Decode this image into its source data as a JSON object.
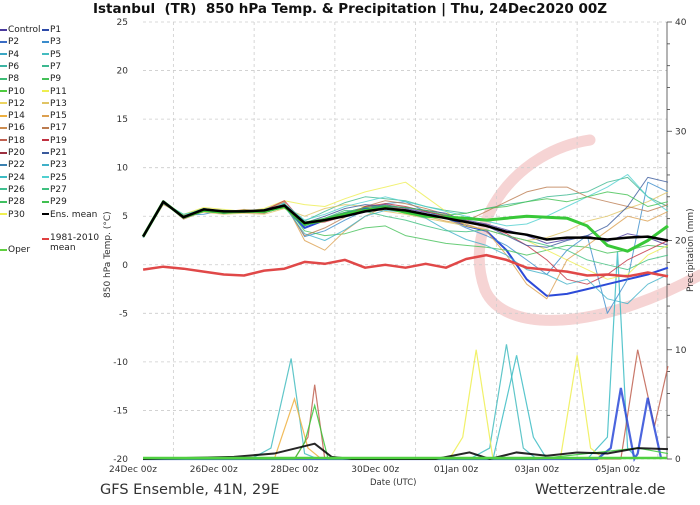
{
  "title": "Istanbul  (TR)  850 hPa Temp. & Precipitation | Thu, 24Dec2020 00Z",
  "footer_left": "GFS Ensemble, 41N, 29E",
  "footer_right": "Wetterzentrale.de",
  "chart_data": {
    "type": "line",
    "title": "Istanbul  (TR)  850 hPa Temp. & Precipitation | Thu, 24Dec2020 00Z",
    "xlabel": "Date (UTC)",
    "ylabel": "850 hPa Temp. (°C)",
    "y2label": "Precipitation (mm)",
    "x_tick_labels": [
      "24Dec 00z",
      "26Dec 00z",
      "28Dec 00z",
      "30Dec 00z",
      "01Jan 00z",
      "03Jan 00z",
      "05Jan 00z"
    ],
    "ylim": [
      -20,
      25
    ],
    "y_ticks": [
      25,
      20,
      15,
      10,
      5,
      0,
      -5,
      -10,
      -15,
      -20
    ],
    "y2lim": [
      0,
      40
    ],
    "y2_ticks": [
      40,
      30,
      20,
      10,
      0
    ],
    "grid": true,
    "legend_position": "left",
    "hours_from_24Dec_00z": [
      6,
      18,
      30,
      42,
      54,
      66,
      78,
      90,
      102,
      114,
      126,
      138,
      150,
      162,
      174,
      186,
      198,
      210,
      222,
      234,
      246,
      258,
      270,
      282,
      294,
      306,
      318
    ],
    "legend": [
      {
        "name": "Control",
        "color": "#4a3a9c"
      },
      {
        "name": "P1",
        "color": "#2c4aa8"
      },
      {
        "name": "P2",
        "color": "#3a6cc4"
      },
      {
        "name": "P3",
        "color": "#3a8ccc"
      },
      {
        "name": "P4",
        "color": "#3aa6c4"
      },
      {
        "name": "P5",
        "color": "#44bcc0"
      },
      {
        "name": "P6",
        "color": "#3cb4a4"
      },
      {
        "name": "P7",
        "color": "#3cb890"
      },
      {
        "name": "P8",
        "color": "#3cbc74"
      },
      {
        "name": "P9",
        "color": "#44c058"
      },
      {
        "name": "P10",
        "color": "#50cc40"
      },
      {
        "name": "P11",
        "color": "#eeee50"
      },
      {
        "name": "P12",
        "color": "#ecd460"
      },
      {
        "name": "P13",
        "color": "#e0c464"
      },
      {
        "name": "P14",
        "color": "#eeb040"
      },
      {
        "name": "P15",
        "color": "#dca050"
      },
      {
        "name": "P16",
        "color": "#cc8c50"
      },
      {
        "name": "P17",
        "color": "#bc7c50"
      },
      {
        "name": "P18",
        "color": "#c06050"
      },
      {
        "name": "P19",
        "color": "#c03040"
      },
      {
        "name": "P20",
        "color": "#9c3040"
      },
      {
        "name": "P21",
        "color": "#3a5a9c"
      },
      {
        "name": "P22",
        "color": "#3a80b0"
      },
      {
        "name": "P23",
        "color": "#40b0c8"
      },
      {
        "name": "P24",
        "color": "#3cbcc4"
      },
      {
        "name": "P25",
        "color": "#50d0d0"
      },
      {
        "name": "P26",
        "color": "#40c090"
      },
      {
        "name": "P27",
        "color": "#40c080"
      },
      {
        "name": "P28",
        "color": "#40c060"
      },
      {
        "name": "P29",
        "color": "#40c050"
      },
      {
        "name": "P30",
        "color": "#f0f050"
      },
      {
        "name": "Ens. mean",
        "color": "#000000"
      },
      {
        "name": "1981-2010 mean",
        "color": "#e04040"
      },
      {
        "name": "Oper",
        "color": "#60d040"
      }
    ],
    "temperature_series": [
      {
        "name": "Control",
        "color": "#4a3a9c",
        "width": 1,
        "values": [
          2.9,
          6.4,
          5.0,
          5.6,
          5.4,
          5.6,
          5.5,
          6.2,
          4.0,
          4.8,
          5.4,
          5.9,
          6.2,
          5.8,
          5.4,
          5.1,
          4.6,
          4.2,
          3.6,
          3.0,
          2.2,
          2.6,
          3.0,
          2.4,
          3.2,
          2.8,
          2.0
        ]
      },
      {
        "name": "P1",
        "color": "#2c4ad8",
        "width": 2,
        "values": [
          2.9,
          6.5,
          4.9,
          5.7,
          5.3,
          5.6,
          5.4,
          6.0,
          3.8,
          4.6,
          5.3,
          5.8,
          6.0,
          5.6,
          5.2,
          4.9,
          4.0,
          3.5,
          1.5,
          -1.5,
          -3.2,
          -3.0,
          -2.5,
          -2.0,
          -1.5,
          -1.0,
          -0.3
        ]
      },
      {
        "name": "P3",
        "color": "#3a8ccc",
        "width": 1,
        "values": [
          2.8,
          6.3,
          5.1,
          5.2,
          5.6,
          5.4,
          5.7,
          6.4,
          2.9,
          3.5,
          4.6,
          5.6,
          6.3,
          6.5,
          5.5,
          4.8,
          3.8,
          3.0,
          2.0,
          0.5,
          -1.0,
          1.5,
          3.0,
          -5.0,
          -1.5,
          8.5,
          7.5
        ]
      },
      {
        "name": "P7",
        "color": "#3cb890",
        "width": 1,
        "values": [
          3.0,
          6.4,
          5.2,
          5.8,
          5.5,
          5.6,
          5.3,
          6.3,
          4.5,
          5.5,
          6.4,
          7.0,
          6.8,
          6.6,
          6.0,
          5.6,
          5.3,
          5.8,
          6.2,
          6.5,
          7.0,
          7.2,
          7.5,
          8.5,
          9.0,
          7.0,
          6.0
        ]
      },
      {
        "name": "P9",
        "color": "#44c058",
        "width": 1,
        "values": [
          2.9,
          6.5,
          4.8,
          5.6,
          5.5,
          5.5,
          5.6,
          6.2,
          3.5,
          3.0,
          3.2,
          3.8,
          4.0,
          3.0,
          2.6,
          2.2,
          2.0,
          1.8,
          1.5,
          1.0,
          1.5,
          2.0,
          1.8,
          1.2,
          1.5,
          2.0,
          1.8
        ]
      },
      {
        "name": "P11",
        "color": "#eeee50",
        "width": 1,
        "values": [
          3.0,
          6.3,
          5.2,
          5.9,
          5.7,
          5.5,
          5.8,
          6.6,
          6.2,
          6.0,
          6.8,
          7.5,
          8.0,
          8.5,
          7.0,
          5.5,
          4.0,
          3.6,
          3.0,
          2.5,
          1.5,
          0.5,
          -0.5,
          -1.5,
          -1.0,
          1.0,
          2.0
        ]
      },
      {
        "name": "P13",
        "color": "#e0c464",
        "width": 1,
        "values": [
          2.8,
          6.4,
          5.0,
          5.4,
          5.2,
          5.3,
          5.2,
          5.8,
          5.0,
          5.8,
          6.2,
          6.0,
          5.5,
          5.2,
          4.8,
          4.4,
          4.0,
          3.6,
          3.0,
          2.5,
          2.8,
          3.5,
          4.5,
          5.0,
          5.8,
          6.5,
          7.5
        ]
      },
      {
        "name": "P15",
        "color": "#dca050",
        "width": 1,
        "values": [
          2.9,
          6.2,
          5.1,
          5.6,
          5.4,
          5.7,
          5.5,
          6.5,
          2.5,
          1.5,
          3.5,
          5.0,
          6.0,
          5.7,
          5.0,
          4.5,
          4.2,
          3.5,
          1.0,
          -2.0,
          -3.5,
          0.5,
          2.0,
          3.5,
          5.0,
          4.5,
          5.5
        ]
      },
      {
        "name": "P17",
        "color": "#bc7c50",
        "width": 1,
        "values": [
          3.0,
          6.5,
          4.7,
          5.5,
          5.6,
          5.4,
          5.3,
          6.2,
          3.0,
          3.8,
          4.9,
          6.0,
          6.6,
          6.3,
          5.8,
          5.2,
          4.5,
          5.5,
          6.5,
          7.5,
          8.0,
          8.0,
          7.0,
          6.5,
          6.0,
          5.5,
          6.2
        ]
      },
      {
        "name": "P19",
        "color": "#c03040",
        "width": 1,
        "values": [
          2.9,
          6.4,
          5.0,
          5.7,
          5.4,
          5.6,
          5.6,
          6.6,
          4.2,
          4.4,
          5.0,
          6.0,
          6.3,
          6.0,
          5.5,
          5.0,
          4.5,
          4.0,
          3.2,
          2.0,
          0.5,
          -1.5,
          -2.0,
          -1.0,
          0.5,
          1.5,
          2.5
        ]
      },
      {
        "name": "P21",
        "color": "#3a5a9c",
        "width": 1,
        "values": [
          2.9,
          6.3,
          5.0,
          5.5,
          5.3,
          5.6,
          5.5,
          6.1,
          4.3,
          5.0,
          5.8,
          6.2,
          6.0,
          5.9,
          5.6,
          5.3,
          4.5,
          4.0,
          3.0,
          2.0,
          1.8,
          2.5,
          3.0,
          4.0,
          6.0,
          9.0,
          8.5
        ]
      },
      {
        "name": "P23",
        "color": "#40b0c8",
        "width": 1,
        "values": [
          2.8,
          6.5,
          5.0,
          5.8,
          5.5,
          5.4,
          5.6,
          6.0,
          3.2,
          2.5,
          3.6,
          5.0,
          5.6,
          5.4,
          4.8,
          3.6,
          2.6,
          2.0,
          1.0,
          -0.5,
          -1.0,
          -2.0,
          -1.5,
          -3.5,
          -4.0,
          -2.0,
          -1.0
        ]
      },
      {
        "name": "P25",
        "color": "#50d0d0",
        "width": 1,
        "values": [
          2.9,
          6.4,
          5.2,
          5.6,
          5.6,
          5.5,
          5.5,
          6.3,
          4.6,
          5.2,
          6.0,
          6.5,
          7.0,
          6.5,
          6.0,
          5.5,
          5.0,
          4.5,
          4.0,
          4.2,
          5.0,
          6.0,
          7.0,
          8.0,
          9.3,
          7.0,
          5.5
        ]
      },
      {
        "name": "P27",
        "color": "#40c080",
        "width": 1,
        "values": [
          3.0,
          6.4,
          4.9,
          5.6,
          5.5,
          5.5,
          5.4,
          6.1,
          4.0,
          4.8,
          5.6,
          5.5,
          5.0,
          4.6,
          4.0,
          3.5,
          3.4,
          3.6,
          3.0,
          2.5,
          2.0,
          1.5,
          0.5,
          0.0,
          -0.5,
          0.5,
          1.0
        ]
      },
      {
        "name": "P29",
        "color": "#40c050",
        "width": 1,
        "values": [
          2.9,
          6.5,
          5.0,
          5.6,
          5.4,
          5.6,
          5.5,
          6.2,
          4.4,
          4.8,
          5.4,
          5.9,
          6.1,
          5.9,
          5.6,
          5.1,
          5.3,
          5.8,
          6.0,
          6.5,
          6.8,
          6.5,
          7.0,
          7.5,
          7.2,
          6.0,
          6.5
        ]
      },
      {
        "name": "Oper",
        "color": "#38c838",
        "width": 3,
        "values": [
          2.9,
          6.5,
          4.9,
          5.6,
          5.4,
          5.5,
          5.5,
          6.0,
          4.2,
          4.6,
          5.2,
          5.6,
          5.9,
          5.4,
          5.0,
          4.9,
          4.8,
          4.6,
          4.8,
          5.0,
          4.9,
          4.8,
          4.0,
          2.0,
          1.4,
          2.5,
          4.0
        ]
      },
      {
        "name": "Ens. mean",
        "color": "#000000",
        "width": 2.5,
        "values": [
          2.9,
          6.5,
          4.9,
          5.7,
          5.5,
          5.5,
          5.6,
          6.1,
          4.3,
          4.6,
          5.0,
          5.5,
          5.8,
          5.6,
          5.2,
          4.8,
          4.4,
          4.0,
          3.4,
          3.1,
          2.6,
          2.8,
          2.8,
          2.6,
          2.8,
          2.9,
          2.5
        ]
      },
      {
        "name": "1981-2010 mean",
        "color": "#e04848",
        "width": 2.5,
        "values": [
          -0.5,
          -0.2,
          -0.4,
          -0.7,
          -1.0,
          -1.1,
          -0.6,
          -0.4,
          0.3,
          0.1,
          0.5,
          -0.3,
          0.0,
          -0.3,
          0.1,
          -0.3,
          0.6,
          1.0,
          0.5,
          -0.3,
          -0.5,
          -0.7,
          -1.1,
          -1.0,
          -1.2,
          -0.8,
          -1.2
        ]
      }
    ],
    "precipitation_series": [
      {
        "name": "P5",
        "color": "#44bcc0",
        "points": [
          [
            70,
            0
          ],
          [
            82,
            1
          ],
          [
            94,
            9.2
          ],
          [
            102,
            0.5
          ],
          [
            110,
            0
          ],
          [
            200,
            0
          ],
          [
            212,
            1
          ],
          [
            222,
            10.5
          ],
          [
            232,
            1
          ],
          [
            240,
            0
          ]
        ]
      },
      {
        "name": "P24",
        "color": "#3cbcc4",
        "points": [
          [
            214,
            0
          ],
          [
            228,
            9.5
          ],
          [
            238,
            2
          ],
          [
            246,
            0
          ],
          [
            270,
            0
          ],
          [
            282,
            2
          ],
          [
            288,
            19
          ],
          [
            294,
            1
          ],
          [
            300,
            0
          ]
        ]
      },
      {
        "name": "P18",
        "color": "#c06050",
        "points": [
          [
            96,
            0
          ],
          [
            104,
            2
          ],
          [
            108,
            6.8
          ],
          [
            114,
            0
          ],
          [
            290,
            0
          ],
          [
            300,
            10
          ],
          [
            310,
            3
          ],
          [
            318,
            8.5
          ]
        ]
      },
      {
        "name": "P11",
        "color": "#eeee50",
        "points": [
          [
            188,
            0
          ],
          [
            196,
            2
          ],
          [
            204,
            10
          ],
          [
            214,
            0
          ],
          [
            254,
            0
          ],
          [
            264,
            9.5
          ],
          [
            272,
            1
          ],
          [
            280,
            0
          ]
        ]
      },
      {
        "name": "P14",
        "color": "#eeb040",
        "points": [
          [
            84,
            0
          ],
          [
            96,
            5.5
          ],
          [
            104,
            1
          ],
          [
            112,
            0
          ]
        ]
      },
      {
        "name": "P1",
        "color": "#2c4ad8",
        "points": [
          [
            276,
            0
          ],
          [
            284,
            1
          ],
          [
            290,
            6.5
          ],
          [
            298,
            0
          ],
          [
            300,
            0.5
          ],
          [
            306,
            5.6
          ],
          [
            314,
            0
          ]
        ]
      },
      {
        "name": "Oper",
        "color": "#38c838",
        "points": [
          [
            96,
            0
          ],
          [
            102,
            1.5
          ],
          [
            108,
            4.9
          ],
          [
            116,
            0
          ],
          [
            240,
            0
          ],
          [
            300,
            1
          ],
          [
            318,
            0.5
          ]
        ]
      },
      {
        "name": "Ens. mean",
        "color": "#000000",
        "points": [
          [
            6,
            0
          ],
          [
            60,
            0.2
          ],
          [
            84,
            0.5
          ],
          [
            108,
            1.4
          ],
          [
            118,
            0.2
          ],
          [
            130,
            0
          ],
          [
            180,
            0
          ],
          [
            200,
            0.6
          ],
          [
            212,
            0
          ],
          [
            228,
            0.6
          ],
          [
            246,
            0.3
          ],
          [
            264,
            0.6
          ],
          [
            282,
            0.5
          ],
          [
            300,
            1.0
          ],
          [
            318,
            0.9
          ]
        ]
      }
    ]
  }
}
